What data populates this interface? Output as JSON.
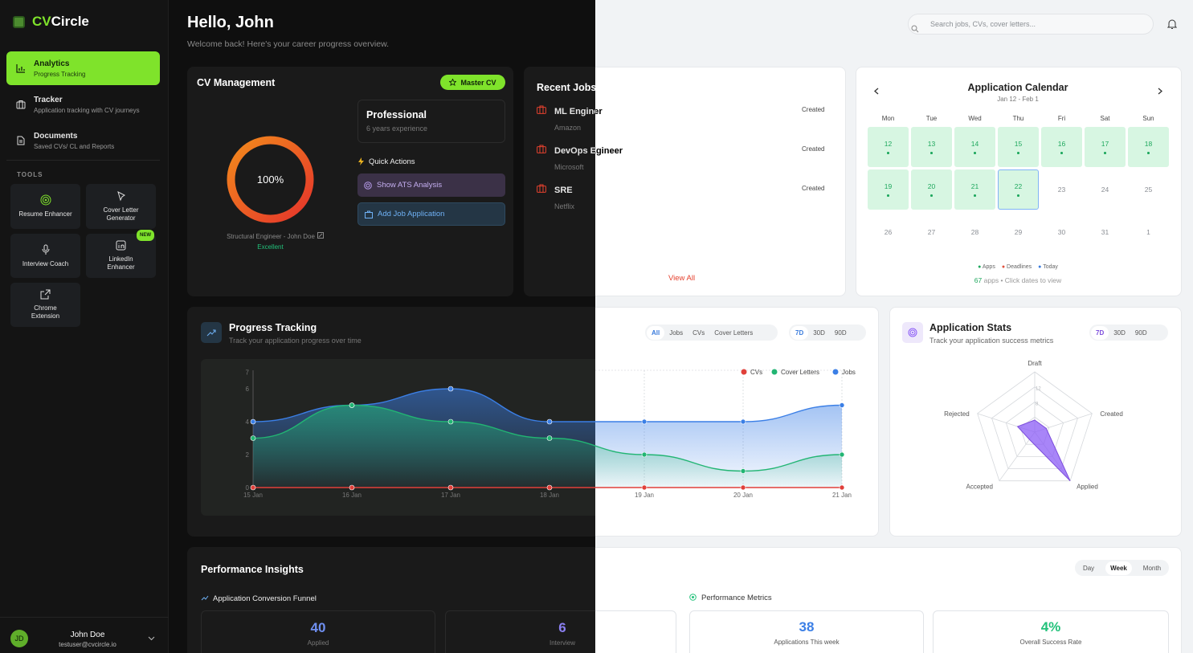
{
  "app": {
    "brand_prefix": "CV",
    "brand_suffix": "Circle"
  },
  "sidebar": {
    "nav": [
      {
        "label": "Analytics",
        "sub": "Progress Tracking",
        "icon": "bar-chart-icon"
      },
      {
        "label": "Tracker",
        "sub": "Application tracking with CV journeys",
        "icon": "briefcase-icon"
      },
      {
        "label": "Documents",
        "sub": "Saved CVs/ CL and Reports",
        "icon": "document-icon"
      }
    ],
    "tools_heading": "TOOLS",
    "tools": [
      {
        "label": "Resume Enhancer",
        "icon": "target-icon"
      },
      {
        "label": "Cover Letter Generator",
        "icon": "pen-icon"
      },
      {
        "label": "Interview Coach",
        "icon": "microphone-icon"
      },
      {
        "label": "LinkedIn Enhancer",
        "icon": "linkedin-icon",
        "badge": "NEW"
      },
      {
        "label": "Chrome Extension",
        "icon": "external-link-icon"
      }
    ],
    "user": {
      "initials": "JD",
      "name": "John Doe",
      "email": "testuser@cvcircle.io"
    }
  },
  "header": {
    "greeting": "Hello, John",
    "subtitle": "Welcome back! Here's your career progress overview.",
    "search_placeholder": "Search jobs, CVs, cover letters..."
  },
  "cv": {
    "title": "CV Management",
    "badge": "Master CV",
    "score": "100%",
    "cv_name": "Structural Engineer - John Doe",
    "rating": "Excellent",
    "profile_title": "Professional",
    "profile_sub": "6 years experience",
    "quick_actions": "Quick Actions",
    "ats_button": "Show ATS Analysis",
    "add_job_button": "Add Job Application"
  },
  "recent_jobs": {
    "title": "Recent Jobs",
    "items": [
      {
        "role": "ML Enginer",
        "company": "Amazon",
        "status": "Created"
      },
      {
        "role": "DevOps Egineer",
        "company": "Microsoft",
        "status": "Created"
      },
      {
        "role": "SRE",
        "company": "Netflix",
        "status": "Created"
      }
    ],
    "view_all": "View All"
  },
  "calendar": {
    "title": "Application Calendar",
    "range": "Jan 12 - Feb 1",
    "days": [
      "Mon",
      "Tue",
      "Wed",
      "Thu",
      "Fri",
      "Sat",
      "Sun"
    ],
    "dates": [
      "12",
      "13",
      "14",
      "15",
      "16",
      "17",
      "18",
      "19",
      "20",
      "21",
      "22",
      "23",
      "24",
      "25",
      "26",
      "27",
      "28",
      "29",
      "30",
      "31",
      "1"
    ],
    "active_dates": [
      "12",
      "13",
      "14",
      "15",
      "16",
      "17",
      "18",
      "19",
      "20",
      "21",
      "22"
    ],
    "today": "22",
    "legend": [
      "Apps",
      "Deadlines",
      "Today"
    ],
    "apps_count": "67",
    "apps_word": "apps",
    "hint": "• Click dates to view",
    "colors": {
      "apps": "#1fa85e",
      "deadlines": "#e0523e",
      "today": "#3a7bdc"
    }
  },
  "progress": {
    "title": "Progress Tracking",
    "subtitle": "Track your application progress over time",
    "filters": [
      "All",
      "Jobs",
      "CVs",
      "Cover Letters"
    ],
    "ranges": [
      "7D",
      "30D",
      "90D"
    ]
  },
  "chart_data": {
    "type": "area",
    "x": [
      "15 Jan",
      "16 Jan",
      "17 Jan",
      "18 Jan",
      "19 Jan",
      "20 Jan",
      "21 Jan"
    ],
    "ylim": [
      0,
      7
    ],
    "yticks": [
      0,
      2,
      4,
      6,
      7
    ],
    "series": [
      {
        "name": "CVs",
        "values": [
          0,
          0,
          0,
          0,
          0,
          0,
          0
        ],
        "color": "#e0403a"
      },
      {
        "name": "Cover Letters",
        "values": [
          3,
          5,
          4,
          3,
          2,
          1,
          2
        ],
        "color": "#22b573"
      },
      {
        "name": "Jobs",
        "values": [
          4,
          5,
          6,
          4,
          4,
          4,
          5
        ],
        "color": "#3b7fe6"
      }
    ]
  },
  "stats": {
    "title": "Application Stats",
    "subtitle": "Track your application success metrics",
    "ranges": [
      "7D",
      "30D",
      "90D"
    ],
    "radar": {
      "axes": [
        "Draft",
        "Created",
        "Applied",
        "Accepted",
        "Rejected"
      ],
      "values": [
        0.2,
        0.2,
        1.0,
        0.15,
        0.3
      ],
      "ticks": [
        "12",
        "8"
      ]
    }
  },
  "insights": {
    "title": "Performance Insights",
    "ranges": [
      "Day",
      "Week",
      "Month"
    ],
    "funnel_title": "Application Conversion Funnel",
    "funnel": [
      {
        "value": "40",
        "label": "Applied"
      },
      {
        "value": "6",
        "label": "Interview"
      }
    ],
    "metrics_title": "Performance Metrics",
    "metrics": [
      {
        "value": "38",
        "label": "Applications This week"
      },
      {
        "value": "4%",
        "label": "Overall Success Rate"
      }
    ]
  }
}
